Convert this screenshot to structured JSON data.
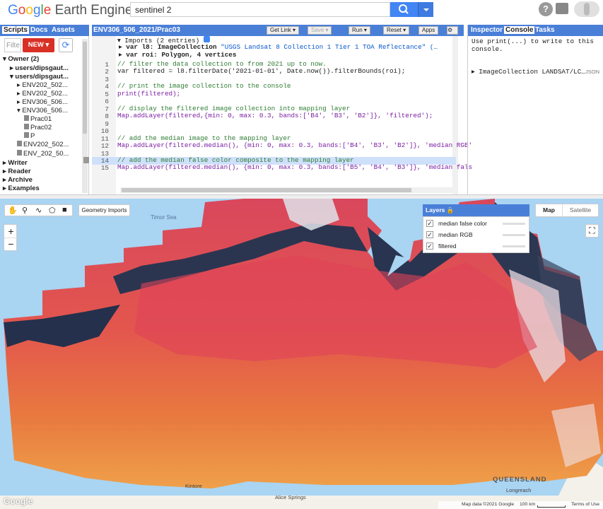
{
  "app": {
    "logo_google": "Google",
    "logo_rest": " Earth Engine"
  },
  "search": {
    "value": "sentinel 2"
  },
  "header_icons": [
    "search-icon",
    "dropdown-icon",
    "help-icon",
    "notifications-icon",
    "avatar"
  ],
  "left_panel": {
    "tabs": [
      "Scripts",
      "Docs",
      "Assets"
    ],
    "filter_placeholder": "Filte",
    "new_button": "NEW ▾",
    "tree": [
      {
        "label": "Owner (2)",
        "indent": 0,
        "arrow": "▾",
        "bold": true
      },
      {
        "label": "users/dipsgaut...",
        "indent": 1,
        "arrow": "▸",
        "bold": true
      },
      {
        "label": "users/dipsgaut...",
        "indent": 1,
        "arrow": "▾",
        "bold": true
      },
      {
        "label": "ENV202_502...",
        "indent": 2,
        "arrow": "▸"
      },
      {
        "label": "ENV202_502...",
        "indent": 2,
        "arrow": "▸"
      },
      {
        "label": "ENV306_506...",
        "indent": 2,
        "arrow": "▸"
      },
      {
        "label": "ENV306_506...",
        "indent": 2,
        "arrow": "▾"
      },
      {
        "label": "Prac01",
        "indent": 3,
        "arrow": ""
      },
      {
        "label": "Prac02",
        "indent": 3,
        "arrow": ""
      },
      {
        "label": "P",
        "indent": 3,
        "arrow": ""
      },
      {
        "label": "ENV202_502...",
        "indent": 2,
        "arrow": ""
      },
      {
        "label": "ENV_202_50...",
        "indent": 2,
        "arrow": ""
      },
      {
        "label": "Writer",
        "indent": 0,
        "arrow": "▸",
        "bold": true
      },
      {
        "label": "Reader",
        "indent": 0,
        "arrow": "▸",
        "bold": true
      },
      {
        "label": "Archive",
        "indent": 0,
        "arrow": "▸",
        "bold": true
      },
      {
        "label": "Examples",
        "indent": 0,
        "arrow": "▸",
        "bold": true
      }
    ]
  },
  "editor": {
    "title": "ENV306_506_2021/Prac03",
    "buttons": {
      "get_link": "Get Link",
      "save": "Save",
      "run": "Run",
      "reset": "Reset",
      "apps": "Apps"
    },
    "imports_header": "Imports (2 entries)",
    "import_l8_prefix": "var l8: ImageCollection ",
    "import_l8_str": "\"USGS Landsat 8 Collection 1 Tier 1 TOA Reflectance\" (…",
    "import_roi": "var roi: Polygon, 4 vertices",
    "lines": [
      {
        "n": "1",
        "text": "// filter the data collection to from 2021 up to now."
      },
      {
        "n": "2",
        "text": "var filtered = l8.filterDate('2021-01-01', Date.now()).filterBounds(roi);"
      },
      {
        "n": "3",
        "text": ""
      },
      {
        "n": "4",
        "text": "// print the image collection to the console"
      },
      {
        "n": "5",
        "text": "print(filtered);"
      },
      {
        "n": "6",
        "text": ""
      },
      {
        "n": "7",
        "text": "// display the filtered image collection into mapping layer"
      },
      {
        "n": "8",
        "text": "Map.addLayer(filtered,{min: 0, max: 0.3, bands:['B4', 'B3', 'B2']}, 'filtered');"
      },
      {
        "n": "9",
        "text": ""
      },
      {
        "n": "10",
        "text": ""
      },
      {
        "n": "11",
        "text": "// add the median image to the mapping layer"
      },
      {
        "n": "12",
        "text": "Map.addLayer(filtered.median(), {min: 0, max: 0.3, bands:['B4', 'B3', 'B2']}, 'median RGB'"
      },
      {
        "n": "13",
        "text": ""
      },
      {
        "n": "14",
        "text": "// add the median false color composite to the mapping layer"
      },
      {
        "n": "15",
        "text": "Map.addLayer(filtered.median(), {min: 0, max: 0.3, bands:['B5', 'B4', 'B3']}, 'median fals"
      }
    ]
  },
  "right_panel": {
    "tabs": [
      "Inspector",
      "Console",
      "Tasks"
    ],
    "console_msg": "Use print(...) to write to this console.",
    "output_item": "ImageCollection LANDSAT/LC…",
    "output_json": "JSON"
  },
  "map": {
    "geometry_imports": "Geometry Imports",
    "map_btn": "Map",
    "satellite_btn": "Satellite",
    "layers_title": "Layers",
    "layers": [
      "median false color",
      "median RGB",
      "filtered"
    ],
    "labels": {
      "timor_sea": "Timor Sea",
      "queensland": "QUEENSLAND",
      "longreach": "Longreach",
      "kintore": "Kintore",
      "alice_springs": "Alice Springs"
    },
    "footer": {
      "google": "Google",
      "data": "Map data ©2021 Google",
      "scale": "100 km",
      "terms": "Terms of Use"
    }
  }
}
